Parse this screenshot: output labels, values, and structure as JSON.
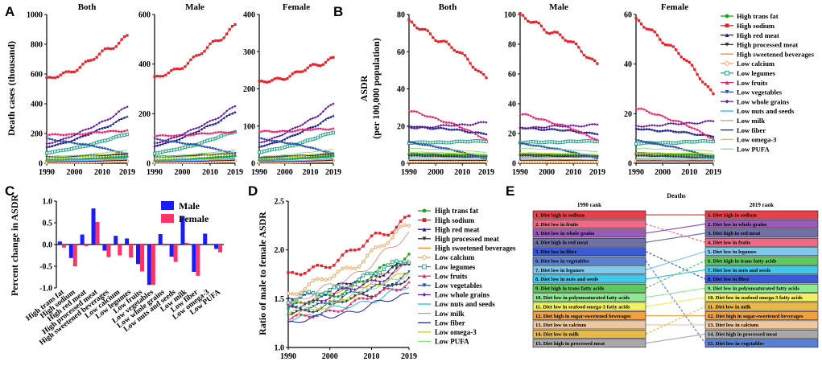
{
  "panel_labels": [
    "A",
    "B",
    "C",
    "D",
    "E"
  ],
  "risk_factors": [
    {
      "name": "High trans fat",
      "color": "#1aa61a",
      "marker": "circle"
    },
    {
      "name": "High sodium",
      "color": "#e8202a",
      "marker": "square"
    },
    {
      "name": "High red meat",
      "color": "#1b1b8c",
      "marker": "triangle"
    },
    {
      "name": "High processed meat",
      "color": "#333333",
      "marker": "triangle-down"
    },
    {
      "name": "High sweetened beverages",
      "color": "#ee8a24",
      "marker": "line"
    },
    {
      "name": "Low calcium",
      "color": "#f0a860",
      "marker": "circle-open"
    },
    {
      "name": "Low legumes",
      "color": "#2aa889",
      "marker": "square-open"
    },
    {
      "name": "Low fruits",
      "color": "#e8246a",
      "marker": "triangle"
    },
    {
      "name": "Low vegetables",
      "color": "#2b4fa8",
      "marker": "triangle-down"
    },
    {
      "name": "Low whole grains",
      "color": "#6a1f9c",
      "marker": "diamond"
    },
    {
      "name": "Low nuts and seeds",
      "color": "#22b8e0",
      "marker": "line"
    },
    {
      "name": "Low milk",
      "color": "#d89a88",
      "marker": "line"
    },
    {
      "name": "Low fiber",
      "color": "#1a1ab8",
      "marker": "line"
    },
    {
      "name": "Low omega-3",
      "color": "#c8c820",
      "marker": "line"
    },
    {
      "name": "Low PUFA",
      "color": "#88e088",
      "marker": "line"
    }
  ],
  "chart_data": [
    {
      "id": "A",
      "type": "line",
      "ylabel": "Death cases (thousand)",
      "years": [
        1990,
        1991,
        1992,
        1993,
        1994,
        1995,
        1996,
        1997,
        1998,
        1999,
        2000,
        2001,
        2002,
        2003,
        2004,
        2005,
        2006,
        2007,
        2008,
        2009,
        2010,
        2011,
        2012,
        2013,
        2014,
        2015,
        2016,
        2017,
        2018,
        2019
      ],
      "xticks": [
        "1990",
        "2000",
        "2010",
        "2019"
      ],
      "subplots": [
        {
          "title": "Both",
          "ylim": [
            0,
            1000
          ],
          "yticks": [
            "0",
            "200",
            "400",
            "600",
            "800",
            "1000"
          ],
          "endpoints": [
            [
              20,
              45
            ],
            [
              560,
              860
            ],
            [
              110,
              320
            ],
            [
              40,
              60
            ],
            [
              10,
              30
            ],
            [
              5,
              15
            ],
            [
              70,
              200
            ],
            [
              190,
              225
            ],
            [
              160,
              60
            ],
            [
              130,
              380
            ],
            [
              20,
              35
            ],
            [
              10,
              25
            ],
            [
              8,
              20
            ],
            [
              30,
              75
            ],
            [
              40,
              90
            ]
          ]
        },
        {
          "title": "Male",
          "ylim": [
            0,
            600
          ],
          "yticks": [
            "0",
            "200",
            "400",
            "600"
          ],
          "endpoints": [
            [
              10,
              30
            ],
            [
              340,
              560
            ],
            [
              70,
              210
            ],
            [
              25,
              40
            ],
            [
              6,
              18
            ],
            [
              3,
              9
            ],
            [
              40,
              130
            ],
            [
              110,
              130
            ],
            [
              95,
              38
            ],
            [
              80,
              230
            ],
            [
              12,
              22
            ],
            [
              6,
              15
            ],
            [
              5,
              12
            ],
            [
              18,
              45
            ],
            [
              25,
              55
            ]
          ]
        },
        {
          "title": "Female",
          "ylim": [
            0,
            400
          ],
          "yticks": [
            "0",
            "100",
            "200",
            "300",
            "400"
          ],
          "endpoints": [
            [
              8,
              20
            ],
            [
              215,
              285
            ],
            [
              45,
              130
            ],
            [
              15,
              25
            ],
            [
              4,
              12
            ],
            [
              2,
              7
            ],
            [
              30,
              85
            ],
            [
              85,
              95
            ],
            [
              65,
              25
            ],
            [
              55,
              160
            ],
            [
              9,
              15
            ],
            [
              5,
              10
            ],
            [
              3,
              8
            ],
            [
              12,
              30
            ],
            [
              18,
              38
            ]
          ]
        }
      ]
    },
    {
      "id": "B",
      "type": "line",
      "ylabel": "ASDR",
      "ylabel2": "(per 100,000 population)",
      "xticks": [
        "1990",
        "2000",
        "2010",
        "2019"
      ],
      "subplots": [
        {
          "title": "Both",
          "ylim": [
            0,
            80
          ],
          "yticks": [
            "0",
            "20",
            "40",
            "60",
            "80"
          ],
          "endpoints": [
            [
              5,
              4
            ],
            [
              75,
              46
            ],
            [
              20,
              16
            ],
            [
              4,
              3
            ],
            [
              2,
              2
            ],
            [
              1,
              1
            ],
            [
              11,
              12
            ],
            [
              28,
              13
            ],
            [
              11,
              2
            ],
            [
              19,
              22
            ],
            [
              3,
              3
            ],
            [
              2,
              2
            ],
            [
              1.5,
              1.5
            ],
            [
              6,
              5
            ],
            [
              8,
              6
            ]
          ]
        },
        {
          "title": "Male",
          "ylim": [
            0,
            100
          ],
          "yticks": [
            "0",
            "20",
            "40",
            "60",
            "80",
            "100"
          ],
          "endpoints": [
            [
              6,
              5
            ],
            [
              98,
              67
            ],
            [
              24,
              20
            ],
            [
              5,
              4
            ],
            [
              3,
              2
            ],
            [
              1,
              1
            ],
            [
              14,
              15
            ],
            [
              33,
              16
            ],
            [
              13,
              3
            ],
            [
              24,
              26
            ],
            [
              4,
              4
            ],
            [
              2,
              2
            ],
            [
              2,
              2
            ],
            [
              7,
              6
            ],
            [
              10,
              8
            ]
          ]
        },
        {
          "title": "Female",
          "ylim": [
            0,
            60
          ],
          "yticks": [
            "0",
            "20",
            "40",
            "60"
          ],
          "endpoints": [
            [
              4,
              3
            ],
            [
              57,
              28
            ],
            [
              14,
              11
            ],
            [
              3,
              2
            ],
            [
              1.5,
              1
            ],
            [
              1,
              1
            ],
            [
              8,
              9
            ],
            [
              22,
              10
            ],
            [
              9,
              2
            ],
            [
              15,
              17
            ],
            [
              2,
              2
            ],
            [
              1,
              1
            ],
            [
              1,
              1
            ],
            [
              4,
              4
            ],
            [
              6,
              5
            ]
          ]
        }
      ]
    },
    {
      "id": "C",
      "type": "bar",
      "ylabel": "Percent change in ASDR",
      "ylim": [
        -1.0,
        1.0
      ],
      "yticks": [
        "-1.0",
        "-0.5",
        "0.0",
        "0.5",
        "1.0"
      ],
      "categories": [
        "High trans fat",
        "High sodium",
        "High red meat",
        "High processed meat",
        "High sweetened beverages",
        "Low calcium",
        "Low legumes",
        "Low fruits",
        "Low vegetables",
        "Low whole grains",
        "Low nuts and seeds",
        "Low milk",
        "Low fiber",
        "Low omega-3",
        "Low PUFA"
      ],
      "series": [
        {
          "name": "Male",
          "color": "#1a1aff",
          "values": [
            0.07,
            -0.31,
            0.23,
            0.83,
            -0.14,
            0.2,
            0.14,
            -0.45,
            -0.93,
            0.24,
            -0.28,
            0.65,
            -0.63,
            0.25,
            -0.1
          ]
        },
        {
          "name": "Female",
          "color": "#ff3366",
          "values": [
            -0.07,
            -0.5,
            -0.04,
            0.52,
            -0.29,
            -0.25,
            -0.3,
            -0.62,
            -0.93,
            -0.02,
            -0.4,
            0.04,
            -0.72,
            0.02,
            -0.18
          ]
        }
      ]
    },
    {
      "id": "D",
      "type": "line",
      "ylabel": "Ratio of male to female ASDR",
      "ylim": [
        1.0,
        2.5
      ],
      "yticks": [
        "1.0",
        "1.5",
        "2.0",
        "2.5"
      ],
      "xticks": [
        "1990",
        "2000",
        "2010",
        "2019"
      ],
      "endpoints": [
        [
          1.4,
          1.95
        ],
        [
          1.72,
          2.35
        ],
        [
          1.5,
          1.9
        ],
        [
          1.35,
          1.7
        ],
        [
          1.45,
          1.85
        ],
        [
          1.55,
          2.25
        ],
        [
          1.48,
          1.92
        ],
        [
          1.28,
          1.68
        ],
        [
          1.38,
          1.75
        ],
        [
          1.42,
          1.85
        ],
        [
          1.3,
          1.62
        ],
        [
          1.45,
          2.15
        ],
        [
          1.25,
          1.55
        ],
        [
          1.33,
          1.8
        ],
        [
          1.36,
          1.78
        ]
      ]
    },
    {
      "id": "E",
      "type": "table",
      "title": "Deaths",
      "left_header": "1990 rank",
      "right_header": "2019 rank",
      "left": [
        {
          "label": "1. Diet high in sodium",
          "color": "#e8404a"
        },
        {
          "label": "2. Diet low in fruits",
          "color": "#ee6a86"
        },
        {
          "label": "3. Diet low in whole grains",
          "color": "#9a5ab8"
        },
        {
          "label": "4. Diet high in red meat",
          "color": "#7070a8"
        },
        {
          "label": "5. Diet low in fiber",
          "color": "#3a5ad8"
        },
        {
          "label": "6. Diet low in vegetables",
          "color": "#5a80d0"
        },
        {
          "label": "7. Diet low in legumes",
          "color": "#80c8ec"
        },
        {
          "label": "8. Diet low in nuts and seeds",
          "color": "#40c8e8"
        },
        {
          "label": "9. Diet high in trans fatty acids",
          "color": "#60c860"
        },
        {
          "label": "10. Diet low in polyunsaturated fatty acids",
          "color": "#90e890"
        },
        {
          "label": "11. Diet low in seafood omega-3 fatty acids",
          "color": "#f0f060"
        },
        {
          "label": "12. Diet high in sugar-sweetened beverages",
          "color": "#f0a040"
        },
        {
          "label": "13. Diet low in calcium",
          "color": "#f0c8a0"
        },
        {
          "label": "14. Diet low in milk",
          "color": "#e8b848"
        },
        {
          "label": "15. Diet high in processed meat",
          "color": "#a8a8a8"
        }
      ],
      "right": [
        {
          "label": "1. Diet high in sodium",
          "color": "#e8404a"
        },
        {
          "label": "2. Diet low in whole grains",
          "color": "#9a5ab8"
        },
        {
          "label": "3. Diet high in red meat",
          "color": "#7070a8"
        },
        {
          "label": "4. Diet low in fruits",
          "color": "#ee6a86"
        },
        {
          "label": "5. Diet low in legumes",
          "color": "#80c8ec"
        },
        {
          "label": "6. Diet high in trans fatty acids",
          "color": "#60c860"
        },
        {
          "label": "7. Diet low in nuts and seeds",
          "color": "#40c8e8"
        },
        {
          "label": "8. Diet low in fiber",
          "color": "#3a5ad8"
        },
        {
          "label": "9. Diet low in polyunsaturated fatty acids",
          "color": "#90e890"
        },
        {
          "label": "10. Diet low in seafood omega-3 fatty acids",
          "color": "#f0f060"
        },
        {
          "label": "11. Diet low in milk",
          "color": "#e8b848"
        },
        {
          "label": "12. Diet high in sugar-sweetened beverages",
          "color": "#f0a040"
        },
        {
          "label": "13. Diet low in calcium",
          "color": "#f0c8a0"
        },
        {
          "label": "14. Diet high in processed meat",
          "color": "#a8a8a8"
        },
        {
          "label": "15. Diet low in vegetables",
          "color": "#5a80d0"
        }
      ],
      "links": [
        [
          1,
          1
        ],
        [
          2,
          4
        ],
        [
          3,
          2
        ],
        [
          4,
          3
        ],
        [
          5,
          8
        ],
        [
          6,
          15
        ],
        [
          7,
          5
        ],
        [
          8,
          7
        ],
        [
          9,
          6
        ],
        [
          10,
          9
        ],
        [
          11,
          10
        ],
        [
          12,
          12
        ],
        [
          13,
          13
        ],
        [
          14,
          11
        ],
        [
          15,
          14
        ]
      ]
    }
  ]
}
